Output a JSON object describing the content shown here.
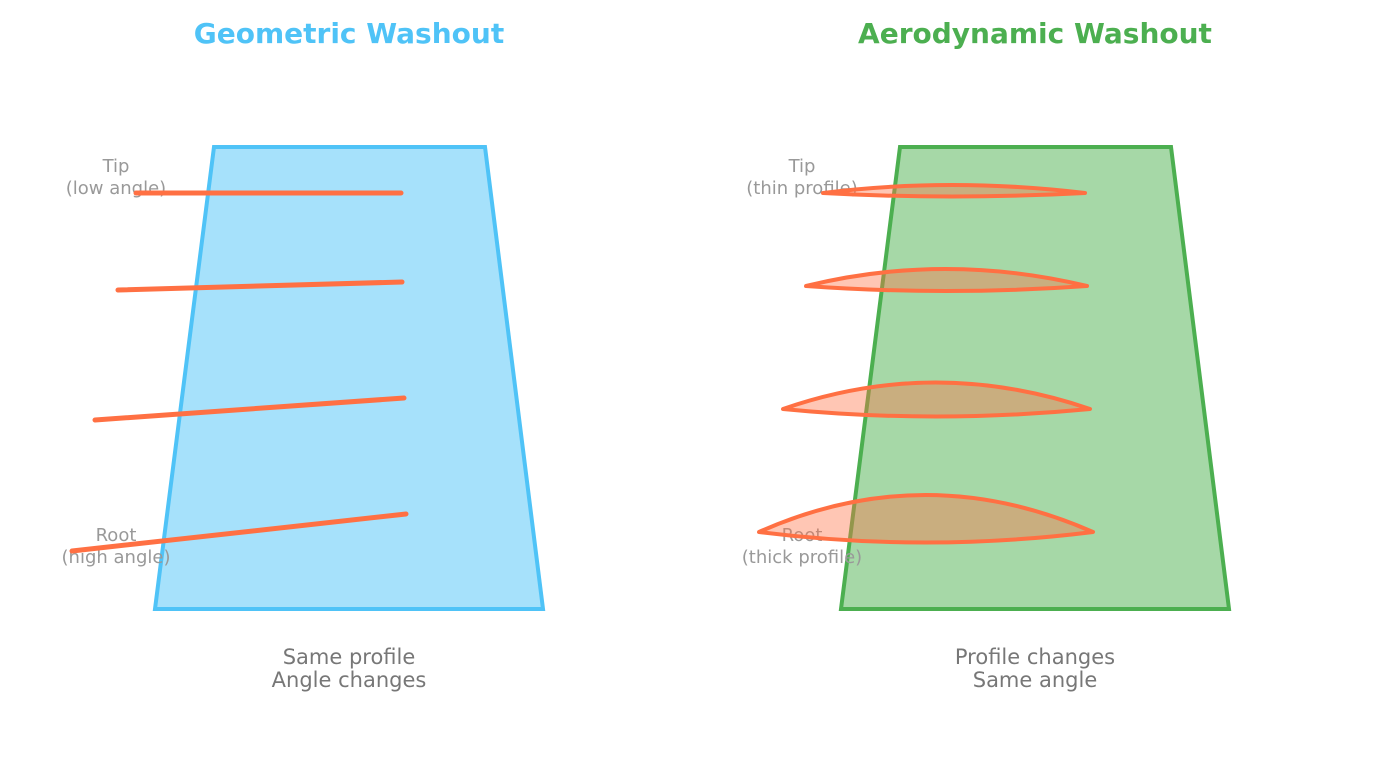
{
  "colors": {
    "geometric": "#4fc3f7",
    "geometric_fill": "#a6e1fb",
    "aerodynamic": "#4caf50",
    "aerodynamic_fill": "#a6d8a7",
    "section": "#ff7043",
    "label": "#999999",
    "caption": "#777777"
  },
  "geometric": {
    "title": "Geometric Washout",
    "tip_label": [
      "Tip",
      "(low angle)"
    ],
    "root_label": [
      "Root",
      "(high angle)"
    ],
    "caption": [
      "Same profile",
      "Angle changes"
    ]
  },
  "aerodynamic": {
    "title": "Aerodynamic Washout",
    "tip_label": [
      "Tip",
      "(thin profile)"
    ],
    "root_label": [
      "Root",
      "(thick profile)"
    ],
    "caption": [
      "Profile changes",
      "Same angle"
    ]
  }
}
